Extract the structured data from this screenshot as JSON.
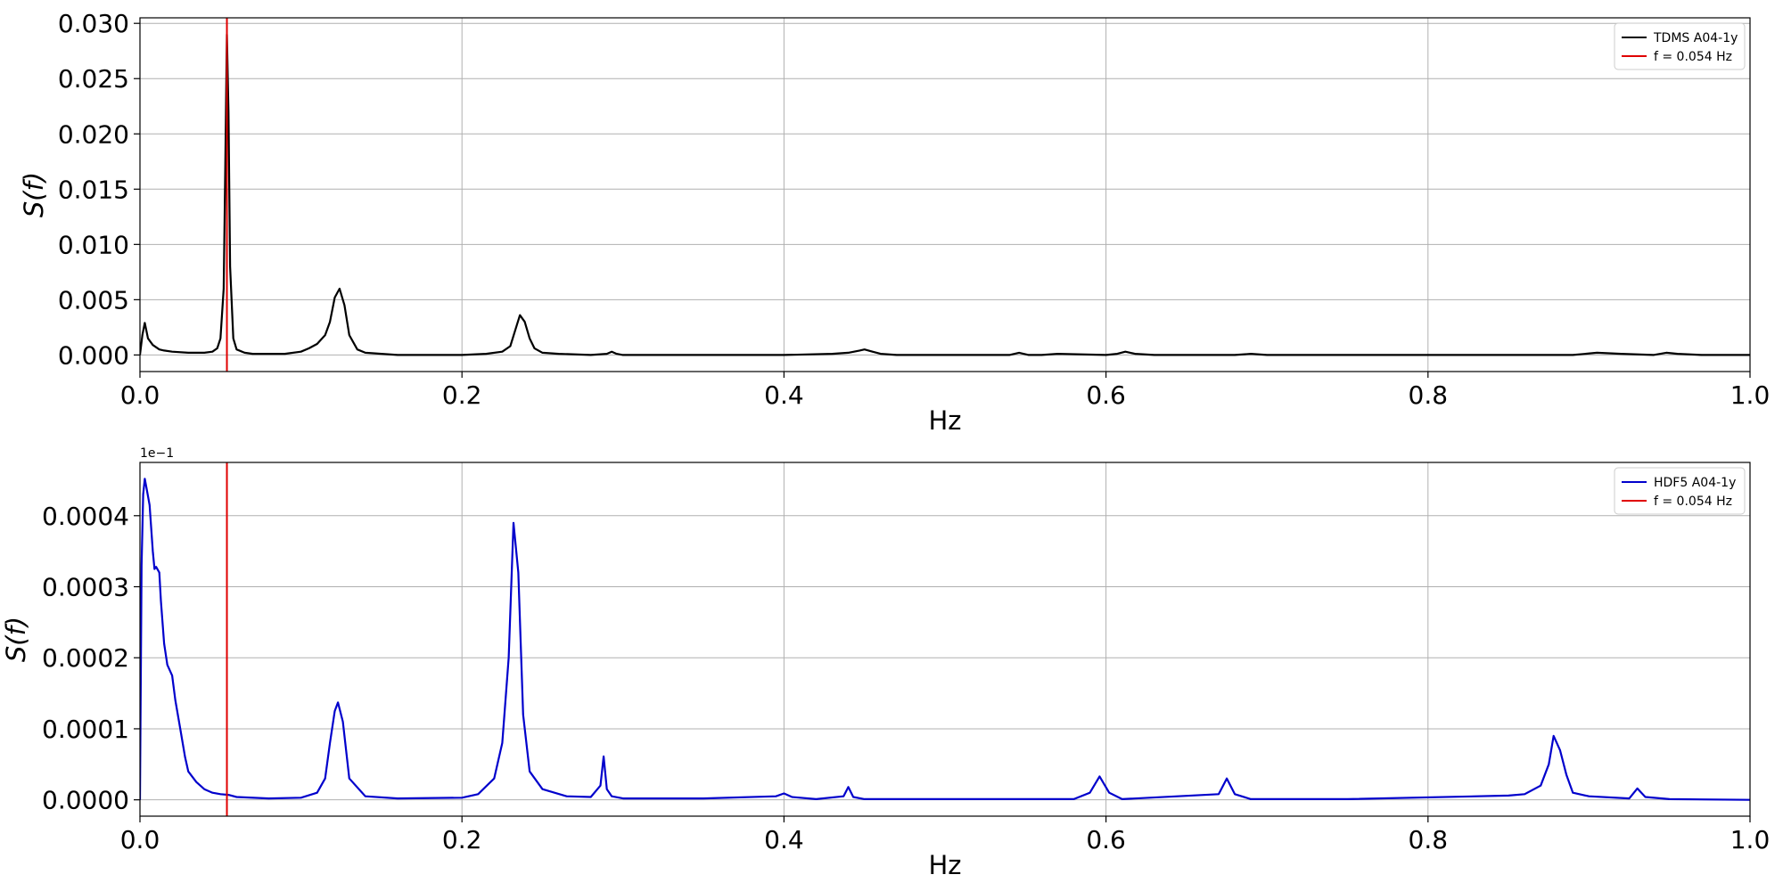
{
  "chart_data": [
    {
      "type": "line",
      "xlabel": "Hz",
      "ylabel": "S(f)",
      "xlim": [
        0.0,
        1.0
      ],
      "ylim": [
        -0.0015,
        0.0305
      ],
      "x_ticks": [
        0.0,
        0.2,
        0.4,
        0.6,
        0.8,
        1.0
      ],
      "x_tick_labels": [
        "0.0",
        "0.2",
        "0.4",
        "0.6",
        "0.8",
        "1.0"
      ],
      "y_ticks": [
        0.0,
        0.005,
        0.01,
        0.015,
        0.02,
        0.025,
        0.03
      ],
      "y_tick_labels": [
        "0.000",
        "0.005",
        "0.010",
        "0.015",
        "0.020",
        "0.025",
        "0.030"
      ],
      "offset_label": "",
      "grid": true,
      "legend_position": "top-right",
      "series": [
        {
          "name": "TDMS A04-1y",
          "color": "#000000",
          "kind": "line",
          "x": [
            0.0,
            0.0015,
            0.003,
            0.005,
            0.008,
            0.012,
            0.015,
            0.02,
            0.03,
            0.04,
            0.045,
            0.048,
            0.05,
            0.052,
            0.053,
            0.054,
            0.055,
            0.056,
            0.058,
            0.06,
            0.065,
            0.07,
            0.08,
            0.09,
            0.1,
            0.105,
            0.11,
            0.115,
            0.118,
            0.121,
            0.124,
            0.127,
            0.13,
            0.135,
            0.14,
            0.15,
            0.16,
            0.18,
            0.2,
            0.215,
            0.225,
            0.23,
            0.233,
            0.236,
            0.239,
            0.242,
            0.245,
            0.25,
            0.26,
            0.28,
            0.29,
            0.293,
            0.296,
            0.3,
            0.35,
            0.4,
            0.43,
            0.44,
            0.447,
            0.45,
            0.455,
            0.46,
            0.47,
            0.5,
            0.54,
            0.546,
            0.552,
            0.56,
            0.57,
            0.6,
            0.607,
            0.612,
            0.618,
            0.63,
            0.68,
            0.69,
            0.7,
            0.75,
            0.8,
            0.85,
            0.89,
            0.905,
            0.92,
            0.94,
            0.948,
            0.955,
            0.97,
            1.0
          ],
          "y": [
            0.0,
            0.0018,
            0.0029,
            0.0015,
            0.0009,
            0.0005,
            0.0004,
            0.0003,
            0.0002,
            0.0002,
            0.0003,
            0.0006,
            0.0015,
            0.006,
            0.017,
            0.029,
            0.022,
            0.008,
            0.0015,
            0.0005,
            0.0002,
            0.0001,
            0.0001,
            0.0001,
            0.0003,
            0.0006,
            0.001,
            0.0018,
            0.003,
            0.0052,
            0.006,
            0.0045,
            0.0018,
            0.0005,
            0.0002,
            0.0001,
            0.0,
            0.0,
            0.0,
            0.0001,
            0.0003,
            0.0008,
            0.0022,
            0.0036,
            0.003,
            0.0015,
            0.0006,
            0.0002,
            0.0001,
            0.0,
            0.0001,
            0.0003,
            0.0001,
            0.0,
            0.0,
            0.0,
            0.0001,
            0.0002,
            0.0004,
            0.0005,
            0.0003,
            0.0001,
            0.0,
            0.0,
            0.0,
            0.0002,
            0.0,
            0.0,
            0.0001,
            0.0,
            0.0001,
            0.0003,
            0.0001,
            0.0,
            0.0,
            0.0001,
            0.0,
            0.0,
            0.0,
            0.0,
            0.0,
            0.0002,
            0.0001,
            0.0,
            0.0002,
            0.0001,
            0.0,
            0.0
          ]
        },
        {
          "name": "f = 0.054 Hz",
          "color": "#e00000",
          "kind": "vline",
          "x_value": 0.054
        }
      ]
    },
    {
      "type": "line",
      "xlabel": "Hz",
      "ylabel": "S(f)",
      "xlim": [
        0.0,
        1.0
      ],
      "ylim": [
        -2.3e-05,
        0.000475
      ],
      "x_ticks": [
        0.0,
        0.2,
        0.4,
        0.6,
        0.8,
        1.0
      ],
      "x_tick_labels": [
        "0.0",
        "0.2",
        "0.4",
        "0.6",
        "0.8",
        "1.0"
      ],
      "y_ticks": [
        0.0,
        0.0001,
        0.0002,
        0.0003,
        0.0004
      ],
      "y_tick_labels": [
        "0.0000",
        "0.0001",
        "0.0002",
        "0.0003",
        "0.0004"
      ],
      "offset_label": "1e−1",
      "grid": true,
      "legend_position": "top-right",
      "series": [
        {
          "name": "HDF5 A04-1y",
          "color": "#0000cc",
          "kind": "line",
          "x": [
            0.0,
            0.001,
            0.002,
            0.003,
            0.004,
            0.006,
            0.008,
            0.009,
            0.01,
            0.012,
            0.013,
            0.015,
            0.017,
            0.02,
            0.022,
            0.025,
            0.028,
            0.03,
            0.035,
            0.04,
            0.045,
            0.05,
            0.055,
            0.06,
            0.08,
            0.1,
            0.11,
            0.115,
            0.118,
            0.121,
            0.123,
            0.126,
            0.13,
            0.14,
            0.16,
            0.2,
            0.21,
            0.22,
            0.225,
            0.229,
            0.232,
            0.235,
            0.238,
            0.242,
            0.25,
            0.265,
            0.28,
            0.286,
            0.288,
            0.29,
            0.293,
            0.3,
            0.35,
            0.395,
            0.4,
            0.405,
            0.42,
            0.437,
            0.44,
            0.443,
            0.45,
            0.5,
            0.58,
            0.59,
            0.596,
            0.602,
            0.61,
            0.67,
            0.675,
            0.68,
            0.69,
            0.75,
            0.85,
            0.86,
            0.87,
            0.875,
            0.878,
            0.882,
            0.886,
            0.89,
            0.9,
            0.925,
            0.93,
            0.935,
            0.95,
            1.0
          ],
          "y": [
            0.0,
            0.00033,
            0.00043,
            0.000452,
            0.00044,
            0.000415,
            0.00035,
            0.000325,
            0.000328,
            0.00032,
            0.00028,
            0.00022,
            0.00019,
            0.000175,
            0.00014,
            0.0001,
            6e-05,
            4e-05,
            2.5e-05,
            1.5e-05,
            1e-05,
            8e-06,
            7e-06,
            4e-06,
            2e-06,
            3e-06,
            1e-05,
            3e-05,
            8e-05,
            0.000125,
            0.000137,
            0.00011,
            3e-05,
            5e-06,
            2e-06,
            3e-06,
            8e-06,
            3e-05,
            8e-05,
            0.0002,
            0.00039,
            0.00032,
            0.00012,
            4e-05,
            1.5e-05,
            5e-06,
            4e-06,
            2e-05,
            6.1e-05,
            1.5e-05,
            5e-06,
            2e-06,
            2e-06,
            5e-06,
            9e-06,
            4e-06,
            1e-06,
            5e-06,
            1.8e-05,
            4e-06,
            1e-06,
            1e-06,
            1e-06,
            1e-05,
            3.3e-05,
            1e-05,
            1e-06,
            8e-06,
            3e-05,
            8e-06,
            1e-06,
            1e-06,
            6e-06,
            8e-06,
            2e-05,
            5e-05,
            9e-05,
            7e-05,
            3.5e-05,
            1e-05,
            5e-06,
            2e-06,
            1.6e-05,
            4e-06,
            1e-06,
            0.0
          ]
        },
        {
          "name": "f = 0.054 Hz",
          "color": "#e00000",
          "kind": "vline",
          "x_value": 0.054
        }
      ]
    }
  ]
}
